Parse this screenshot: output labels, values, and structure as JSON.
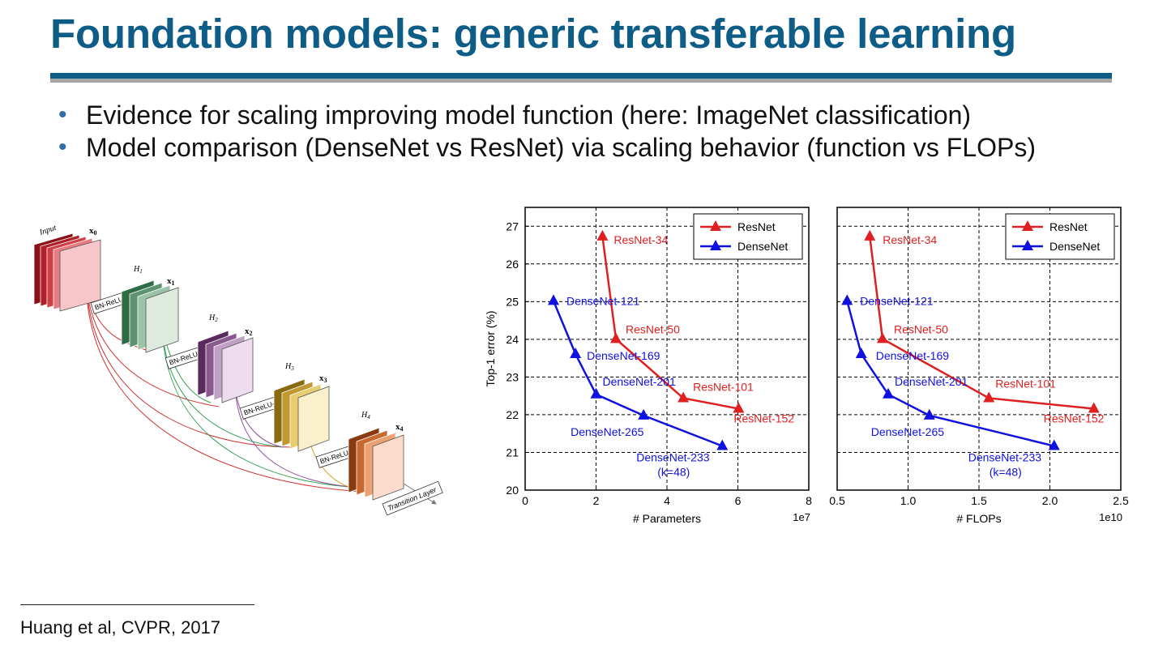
{
  "slide": {
    "title": "Foundation models: generic transferable learning",
    "bullets": [
      "Evidence for scaling improving model function (here: ImageNet classification)",
      "Model comparison (DenseNet vs ResNet) via scaling behavior (function vs FLOPs)"
    ],
    "footnote": "Huang et al, CVPR, 2017",
    "colors": {
      "title": "#0e5d86",
      "resnet": "#e02020",
      "densenet": "#1010e0"
    }
  },
  "diagram": {
    "input_label": "Input",
    "x_labels": [
      "x",
      "x",
      "x",
      "x",
      "x"
    ],
    "x_subscripts": [
      "0",
      "1",
      "2",
      "3",
      "4"
    ],
    "h_labels": [
      "H",
      "H",
      "H",
      "H"
    ],
    "h_subscripts": [
      "1",
      "2",
      "3",
      "4"
    ],
    "bn_label": "BN-ReLU-Conv",
    "transition_label": "Transition Layer"
  },
  "chart_data": [
    {
      "type": "line",
      "xlabel": "# Parameters",
      "ylabel": "Top-1 error (%)",
      "x_scale_label": "1e7",
      "xlim": [
        0,
        8
      ],
      "ylim": [
        20,
        27.5
      ],
      "xticks": [
        "0",
        "2",
        "4",
        "6",
        "8"
      ],
      "yticks": [
        "20",
        "21",
        "22",
        "23",
        "24",
        "25",
        "26",
        "27"
      ],
      "grid": true,
      "legend": "top-right",
      "series": [
        {
          "name": "ResNet",
          "color": "#e02020",
          "x": [
            2.18,
            2.56,
            4.46,
            6.02
          ],
          "y": [
            26.73,
            24.01,
            22.44,
            22.16
          ],
          "labels": [
            "ResNet-34",
            "ResNet-50",
            "ResNet-101",
            "ResNet-152"
          ]
        },
        {
          "name": "DenseNet",
          "color": "#1010e0",
          "x": [
            0.8,
            1.42,
            2.0,
            3.34,
            5.56
          ],
          "y": [
            25.02,
            23.61,
            22.54,
            21.98,
            21.17
          ],
          "labels": [
            "DenseNet-121",
            "DenseNet-169",
            "DenseNet-201",
            "DenseNet-265",
            "DenseNet-233\n(k=48)"
          ]
        }
      ]
    },
    {
      "type": "line",
      "xlabel": "# FLOPs",
      "ylabel": "",
      "x_scale_label": "1e10",
      "xlim": [
        0.5,
        2.5
      ],
      "ylim": [
        20,
        27.5
      ],
      "xticks": [
        "0.5",
        "1.0",
        "1.5",
        "2.0",
        "2.5"
      ],
      "yticks": [],
      "grid": true,
      "legend": "top-right",
      "series": [
        {
          "name": "ResNet",
          "color": "#e02020",
          "x": [
            0.73,
            0.82,
            1.57,
            2.31
          ],
          "y": [
            26.73,
            24.01,
            22.44,
            22.16
          ],
          "labels": [
            "ResNet-34",
            "ResNet-50",
            "ResNet-101",
            "ResNet-152"
          ]
        },
        {
          "name": "DenseNet",
          "color": "#1010e0",
          "x": [
            0.57,
            0.67,
            0.86,
            1.15,
            2.03
          ],
          "y": [
            25.02,
            23.61,
            22.54,
            21.98,
            21.17
          ],
          "labels": [
            "DenseNet-121",
            "DenseNet-169",
            "DenseNet-201",
            "DenseNet-265",
            "DenseNet-233\n(k=48)"
          ]
        }
      ]
    }
  ]
}
